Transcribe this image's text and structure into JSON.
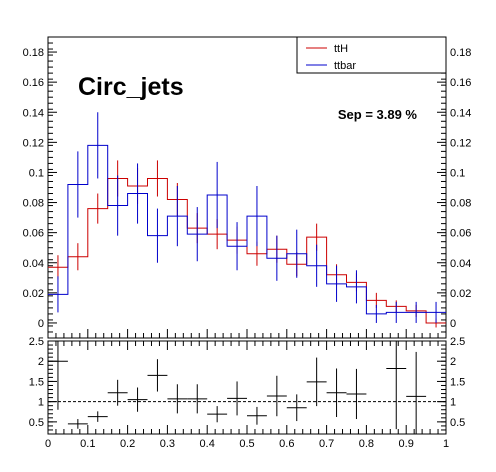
{
  "chart_data": [
    {
      "type": "histogram",
      "title": "Circ_jets",
      "annotation": "Sep = 3.89 %",
      "xlim": [
        0,
        1
      ],
      "ylim": [
        -0.01,
        0.19
      ],
      "yticks": [
        0,
        0.02,
        0.04,
        0.06,
        0.08,
        0.1,
        0.12,
        0.14,
        0.16,
        0.18
      ],
      "ytick_labels": [
        "0",
        "0.02",
        "0.04",
        "0.06",
        "0.08",
        "0.1",
        "0.12",
        "0.14",
        "0.16",
        "0.18"
      ],
      "legend": {
        "position": "top-right",
        "entries": [
          "ttH",
          "ttbar"
        ]
      },
      "bin_edges": [
        0,
        0.05,
        0.1,
        0.15,
        0.2,
        0.25,
        0.3,
        0.35,
        0.4,
        0.45,
        0.5,
        0.55,
        0.6,
        0.65,
        0.7,
        0.75,
        0.8,
        0.85,
        0.9,
        0.95,
        1.0
      ],
      "series": [
        {
          "name": "ttH",
          "color": "#cc0000",
          "values": [
            0.037,
            0.044,
            0.076,
            0.096,
            0.091,
            0.096,
            0.082,
            0.063,
            0.059,
            0.055,
            0.046,
            0.049,
            0.039,
            0.057,
            0.032,
            0.027,
            0.015,
            0.011,
            0.008,
            0.0
          ],
          "errors": [
            0.008,
            0.009,
            0.01,
            0.012,
            0.012,
            0.012,
            0.011,
            0.01,
            0.01,
            0.009,
            0.008,
            0.009,
            0.008,
            0.009,
            0.007,
            0.006,
            0.005,
            0.004,
            0.004,
            0.003
          ]
        },
        {
          "name": "ttbar",
          "color": "#0000cc",
          "values": [
            0.019,
            0.092,
            0.118,
            0.078,
            0.086,
            0.058,
            0.071,
            0.059,
            0.085,
            0.051,
            0.071,
            0.043,
            0.046,
            0.038,
            0.026,
            0.024,
            0.006,
            0.007,
            0.007,
            0.007
          ],
          "errors": [
            0.012,
            0.022,
            0.022,
            0.02,
            0.02,
            0.018,
            0.02,
            0.018,
            0.022,
            0.016,
            0.02,
            0.015,
            0.016,
            0.014,
            0.012,
            0.011,
            0.006,
            0.007,
            0.007,
            0.007
          ]
        }
      ]
    },
    {
      "type": "scatter",
      "xlim": [
        0,
        1
      ],
      "ylim": [
        0.2,
        2.5
      ],
      "xticks": [
        0,
        0.1,
        0.2,
        0.3,
        0.4,
        0.5,
        0.6,
        0.7,
        0.8,
        0.9,
        1
      ],
      "xtick_labels": [
        "0",
        "0.1",
        "0.2",
        "0.3",
        "0.4",
        "0.5",
        "0.6",
        "0.7",
        "0.8",
        "0.9",
        "1"
      ],
      "yticks": [
        0.5,
        1,
        1.5,
        2,
        2.5
      ],
      "ytick_labels": [
        "0.5",
        "1",
        "1.5",
        "2",
        "2.5"
      ],
      "reference_line": 1,
      "series": [
        {
          "x": [
            0.025,
            0.075,
            0.125,
            0.175,
            0.225,
            0.275,
            0.325,
            0.375,
            0.425,
            0.475,
            0.525,
            0.575,
            0.625,
            0.675,
            0.725,
            0.775,
            0.875,
            0.925
          ],
          "y": [
            2.0,
            0.45,
            0.63,
            1.22,
            1.05,
            1.65,
            1.07,
            1.07,
            0.69,
            1.08,
            0.65,
            1.14,
            0.85,
            1.49,
            1.22,
            1.19,
            1.82,
            1.13
          ],
          "yerr": [
            1.2,
            0.12,
            0.13,
            0.32,
            0.3,
            0.4,
            0.36,
            0.36,
            0.2,
            0.42,
            0.22,
            0.5,
            0.33,
            0.6,
            0.6,
            0.62,
            1.5,
            1.1
          ]
        }
      ]
    }
  ]
}
